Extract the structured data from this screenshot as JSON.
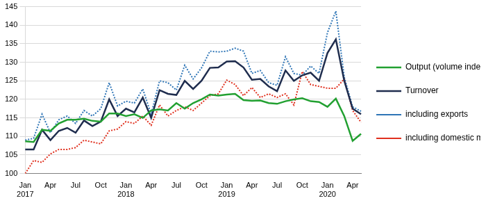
{
  "chart_data": {
    "type": "line",
    "categories": [
      "Jan 2017",
      null,
      null,
      "Apr",
      null,
      null,
      "Jul",
      null,
      null,
      "Oct",
      null,
      null,
      "Jan 2018",
      null,
      null,
      "Apr",
      null,
      null,
      "Jul",
      null,
      null,
      "Oct",
      null,
      null,
      "Jan 2019",
      null,
      null,
      "Apr",
      null,
      null,
      "Jul",
      null,
      null,
      "Oct",
      null,
      null,
      "Jan 2020",
      null,
      null,
      "Apr",
      null
    ],
    "series": [
      {
        "name": "Output (volume index)",
        "color": "#22a031",
        "line_style": "solid",
        "marker": "none",
        "values": [
          108.7,
          108.5,
          111.8,
          111.5,
          113.5,
          114.5,
          114.5,
          114.8,
          114.2,
          114.0,
          116.2,
          116.2,
          115.5,
          116.0,
          115.0,
          117.0,
          117.3,
          117.0,
          119.0,
          117.5,
          119.0,
          120.0,
          121.3,
          121.0,
          121.3,
          121.5,
          119.8,
          119.6,
          119.7,
          119.0,
          118.8,
          119.5,
          120.0,
          120.3,
          119.5,
          119.3,
          118.0,
          120.2,
          115.5,
          108.8,
          110.7
        ]
      },
      {
        "name": "Turnover",
        "color": "#1f2d4e",
        "line_style": "solid",
        "marker": "none",
        "values": [
          106.5,
          106.5,
          111.8,
          109.0,
          111.5,
          112.3,
          111.0,
          114.3,
          112.8,
          114.0,
          120.0,
          115.5,
          117.5,
          116.5,
          120.5,
          115.0,
          122.5,
          121.5,
          121.2,
          125.0,
          122.8,
          125.0,
          128.5,
          128.6,
          130.2,
          130.3,
          128.6,
          125.3,
          125.5,
          123.5,
          122.2,
          127.8,
          125.0,
          126.5,
          127.2,
          125.0,
          132.5,
          136.2,
          125.0,
          117.5,
          116.0
        ]
      },
      {
        "name": "including exports",
        "color": "#2e75b6",
        "line_style": "dotted",
        "marker": "none",
        "values": [
          109.0,
          109.5,
          116.0,
          111.0,
          114.5,
          115.5,
          113.5,
          117.0,
          115.5,
          117.5,
          124.5,
          118.2,
          119.5,
          119.0,
          122.8,
          116.0,
          125.0,
          124.5,
          122.5,
          129.2,
          125.5,
          128.5,
          133.0,
          132.8,
          133.0,
          133.8,
          133.0,
          127.0,
          127.8,
          124.5,
          123.8,
          131.5,
          127.0,
          126.5,
          129.0,
          127.0,
          138.0,
          143.8,
          126.0,
          118.0,
          116.8
        ]
      },
      {
        "name": "including domestic market",
        "color": "#e0301e",
        "line_style": "dotted",
        "marker": "none",
        "values": [
          100.0,
          103.5,
          103.0,
          105.3,
          106.5,
          106.5,
          107.0,
          109.0,
          108.5,
          108.0,
          111.5,
          112.0,
          114.0,
          113.5,
          115.5,
          113.0,
          118.5,
          115.5,
          117.0,
          118.0,
          117.0,
          119.0,
          121.0,
          121.5,
          125.2,
          124.0,
          121.0,
          123.2,
          120.5,
          121.5,
          120.5,
          121.5,
          118.5,
          127.5,
          124.0,
          123.5,
          123.0,
          123.0,
          125.5,
          117.0,
          113.8
        ]
      }
    ],
    "ylim": [
      100,
      145
    ],
    "yticks": [
      100,
      105,
      110,
      115,
      120,
      125,
      130,
      135,
      140,
      145
    ],
    "grid": true,
    "legend": "right"
  }
}
